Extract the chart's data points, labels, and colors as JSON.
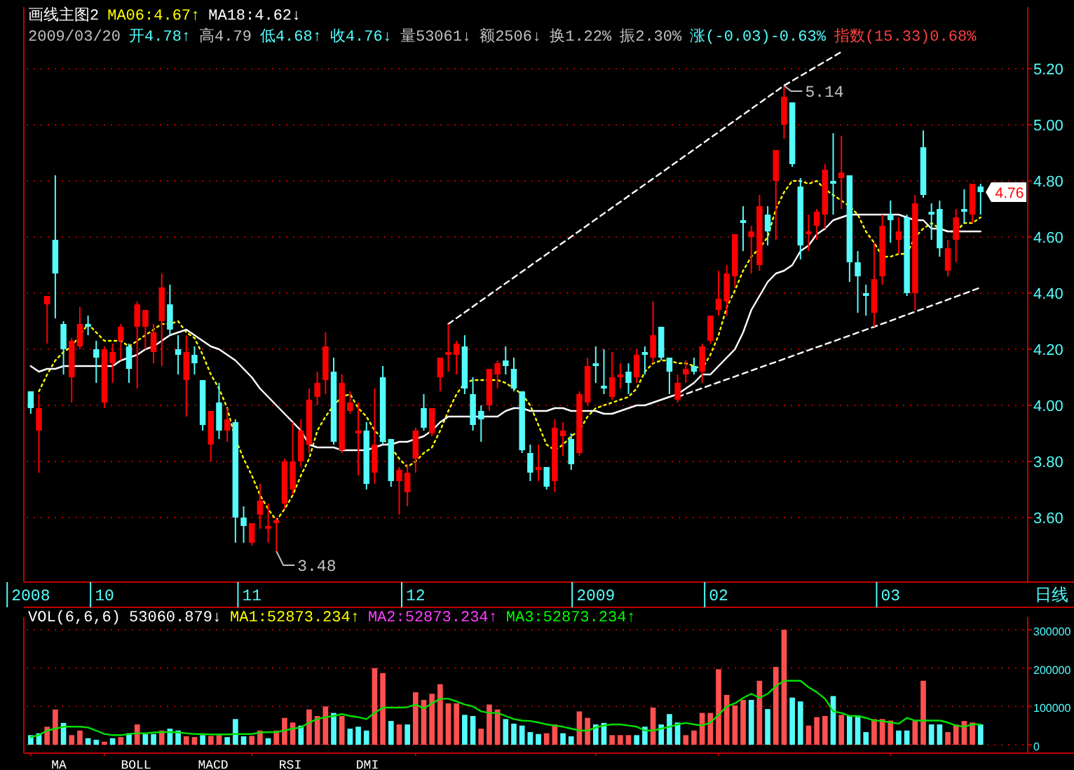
{
  "chart_data": [
    {
      "type": "candlestick",
      "categories": [
        "2008",
        null,
        null,
        null,
        null,
        null,
        null,
        null,
        null,
        "10",
        null,
        null,
        null,
        null,
        null,
        null,
        null,
        null,
        null,
        null,
        null,
        null,
        null,
        null,
        null,
        null,
        null,
        "11",
        null,
        null,
        null,
        null,
        null,
        null,
        null,
        null,
        null,
        null,
        null,
        null,
        null,
        null,
        null,
        null,
        null,
        null,
        null,
        "12",
        null,
        null,
        null,
        null,
        null,
        null,
        null,
        null,
        null,
        null,
        null,
        null,
        null,
        null,
        null,
        null,
        null,
        null,
        null,
        null,
        null,
        "2009",
        null,
        null,
        null,
        null,
        null,
        null,
        null,
        null,
        null,
        null,
        null,
        null,
        null,
        null,
        "02",
        null,
        null,
        null,
        null,
        null,
        null,
        null,
        null,
        null,
        null,
        null,
        null,
        null,
        null,
        null,
        null,
        null,
        null,
        null,
        null,
        "03",
        null,
        null,
        null,
        null,
        null,
        null,
        null,
        null,
        null,
        null,
        null
      ],
      "ohlc": [
        [
          4.05,
          4.05,
          3.97,
          3.99
        ],
        [
          3.91,
          4.04,
          3.76,
          3.99
        ],
        [
          4.36,
          4.39,
          4.22,
          4.39
        ],
        [
          4.59,
          4.82,
          4.31,
          4.47
        ],
        [
          4.29,
          4.3,
          4.11,
          4.2
        ],
        [
          4.1,
          4.24,
          4.01,
          4.23
        ],
        [
          4.21,
          4.35,
          4.2,
          4.29
        ],
        [
          4.29,
          4.32,
          4.25,
          4.28
        ],
        [
          4.2,
          4.23,
          4.08,
          4.17
        ],
        [
          4.01,
          4.21,
          3.99,
          4.2
        ],
        [
          4.15,
          4.22,
          4.08,
          4.19
        ],
        [
          4.23,
          4.29,
          4.16,
          4.28
        ],
        [
          4.21,
          4.22,
          4.08,
          4.13
        ],
        [
          4.28,
          4.37,
          4.06,
          4.36
        ],
        [
          4.28,
          4.34,
          4.2,
          4.34
        ],
        [
          4.19,
          4.29,
          4.15,
          4.26
        ],
        [
          4.3,
          4.47,
          4.14,
          4.42
        ],
        [
          4.36,
          4.43,
          4.25,
          4.27
        ],
        [
          4.2,
          4.25,
          4.11,
          4.18
        ],
        [
          4.09,
          4.25,
          3.96,
          4.19
        ],
        [
          4.18,
          4.21,
          4.11,
          4.15
        ],
        [
          4.09,
          4.09,
          3.91,
          3.93
        ],
        [
          3.86,
          3.98,
          3.8,
          3.98
        ],
        [
          4.01,
          4.08,
          3.88,
          3.91
        ],
        [
          3.91,
          3.99,
          3.87,
          3.95
        ],
        [
          3.94,
          3.95,
          3.51,
          3.6
        ],
        [
          3.6,
          3.64,
          3.51,
          3.57
        ],
        [
          3.51,
          3.58,
          3.5,
          3.58
        ],
        [
          3.61,
          3.72,
          3.56,
          3.66
        ],
        [
          3.56,
          3.65,
          3.51,
          3.57
        ],
        [
          3.58,
          3.6,
          3.48,
          3.59
        ],
        [
          3.65,
          3.81,
          3.63,
          3.8
        ],
        [
          3.7,
          3.94,
          3.68,
          3.8
        ],
        [
          3.8,
          3.95,
          3.78,
          3.91
        ],
        [
          3.86,
          4.06,
          3.83,
          4.02
        ],
        [
          4.03,
          4.12,
          4.0,
          4.08
        ],
        [
          4.09,
          4.26,
          4.04,
          4.21
        ],
        [
          4.12,
          4.17,
          3.86,
          3.87
        ],
        [
          3.84,
          4.11,
          3.83,
          4.08
        ],
        [
          3.98,
          4.05,
          3.97,
          4.01
        ],
        [
          3.9,
          4.01,
          3.75,
          3.91
        ],
        [
          3.91,
          3.94,
          3.7,
          3.72
        ],
        [
          3.76,
          4.06,
          3.72,
          3.86
        ],
        [
          4.1,
          4.14,
          3.86,
          3.87
        ],
        [
          3.88,
          3.88,
          3.71,
          3.73
        ],
        [
          3.73,
          3.78,
          3.61,
          3.77
        ],
        [
          3.69,
          3.79,
          3.64,
          3.76
        ],
        [
          3.81,
          3.92,
          3.76,
          3.91
        ],
        [
          3.99,
          4.04,
          3.91,
          3.92
        ],
        [
          3.9,
          3.99,
          3.89,
          3.99
        ],
        [
          4.1,
          4.17,
          4.05,
          4.17
        ],
        [
          4.18,
          4.29,
          4.12,
          4.19
        ],
        [
          4.18,
          4.23,
          4.11,
          4.22
        ],
        [
          4.21,
          4.25,
          4.04,
          4.06
        ],
        [
          4.04,
          4.1,
          3.91,
          3.93
        ],
        [
          3.98,
          4.0,
          3.87,
          3.95
        ],
        [
          4.0,
          4.13,
          3.98,
          4.13
        ],
        [
          4.11,
          4.16,
          4.06,
          4.15
        ],
        [
          4.16,
          4.21,
          4.11,
          4.14
        ],
        [
          4.13,
          4.17,
          4.05,
          4.06
        ],
        [
          4.05,
          4.05,
          3.83,
          3.84
        ],
        [
          3.83,
          3.86,
          3.73,
          3.76
        ],
        [
          3.77,
          3.86,
          3.73,
          3.78
        ],
        [
          3.78,
          3.78,
          3.7,
          3.71
        ],
        [
          3.73,
          3.95,
          3.69,
          3.92
        ],
        [
          3.89,
          3.94,
          3.82,
          3.91
        ],
        [
          3.88,
          3.9,
          3.77,
          3.79
        ],
        [
          3.83,
          4.05,
          3.82,
          4.04
        ],
        [
          4.01,
          4.17,
          4.0,
          4.14
        ],
        [
          4.15,
          4.21,
          4.08,
          4.14
        ],
        [
          4.07,
          4.2,
          4.04,
          4.06
        ],
        [
          4.03,
          4.19,
          4.02,
          4.1
        ],
        [
          4.1,
          4.15,
          4.06,
          4.11
        ],
        [
          4.12,
          4.15,
          4.04,
          4.08
        ],
        [
          4.1,
          4.2,
          4.08,
          4.18
        ],
        [
          4.19,
          4.21,
          4.11,
          4.18
        ],
        [
          4.17,
          4.37,
          4.15,
          4.25
        ],
        [
          4.28,
          4.28,
          4.16,
          4.17
        ],
        [
          4.17,
          4.17,
          4.04,
          4.12
        ],
        [
          4.02,
          4.11,
          4.01,
          4.08
        ],
        [
          4.11,
          4.16,
          4.08,
          4.13
        ],
        [
          4.14,
          4.17,
          4.11,
          4.12
        ],
        [
          4.12,
          4.22,
          4.08,
          4.21
        ],
        [
          4.23,
          4.32,
          4.22,
          4.32
        ],
        [
          4.34,
          4.48,
          4.32,
          4.38
        ],
        [
          4.37,
          4.5,
          4.32,
          4.47
        ],
        [
          4.46,
          4.61,
          4.42,
          4.61
        ],
        [
          4.66,
          4.71,
          4.55,
          4.65
        ],
        [
          4.6,
          4.64,
          4.47,
          4.62
        ],
        [
          4.5,
          4.75,
          4.48,
          4.71
        ],
        [
          4.68,
          4.71,
          4.57,
          4.62
        ],
        [
          4.8,
          4.91,
          4.59,
          4.91
        ],
        [
          5.0,
          5.14,
          4.95,
          5.1
        ],
        [
          5.08,
          5.08,
          4.85,
          4.86
        ],
        [
          4.78,
          4.81,
          4.52,
          4.57
        ],
        [
          4.61,
          4.68,
          4.55,
          4.62
        ],
        [
          4.64,
          4.7,
          4.59,
          4.69
        ],
        [
          4.68,
          4.86,
          4.63,
          4.84
        ],
        [
          4.8,
          4.97,
          4.68,
          4.79
        ],
        [
          4.81,
          4.96,
          4.7,
          4.83
        ],
        [
          4.82,
          4.82,
          4.44,
          4.51
        ],
        [
          4.51,
          4.55,
          4.33,
          4.46
        ],
        [
          4.4,
          4.43,
          4.32,
          4.39
        ],
        [
          4.33,
          4.58,
          4.28,
          4.45
        ],
        [
          4.46,
          4.68,
          4.43,
          4.64
        ],
        [
          4.68,
          4.73,
          4.58,
          4.66
        ],
        [
          4.59,
          4.67,
          4.54,
          4.62
        ],
        [
          4.67,
          4.68,
          4.39,
          4.4
        ],
        [
          4.4,
          4.75,
          4.34,
          4.72
        ],
        [
          4.92,
          4.98,
          4.74,
          4.75
        ],
        [
          4.69,
          4.72,
          4.59,
          4.68
        ],
        [
          4.7,
          4.73,
          4.53,
          4.56
        ],
        [
          4.48,
          4.59,
          4.46,
          4.56
        ],
        [
          4.59,
          4.7,
          4.51,
          4.67
        ],
        [
          4.7,
          4.77,
          4.65,
          4.69
        ],
        [
          4.68,
          4.79,
          4.65,
          4.79
        ],
        [
          4.78,
          4.79,
          4.68,
          4.76
        ]
      ],
      "colors": [
        "#54fcfc",
        "#ff0000",
        "#ff0000",
        "#54fcfc",
        "#54fcfc",
        "#ff0000",
        "#ff0000",
        "#54fcfc",
        "#54fcfc",
        "#ff0000",
        "#ff0000",
        "#ff0000",
        "#54fcfc",
        "#ff0000",
        "#ff0000",
        "#ff0000",
        "#ff0000",
        "#54fcfc",
        "#54fcfc",
        "#ff0000",
        "#54fcfc",
        "#54fcfc",
        "#ff0000",
        "#54fcfc",
        "#ff0000",
        "#54fcfc",
        "#54fcfc",
        "#ff0000",
        "#ff0000",
        "#ff0000",
        "#ff0000",
        "#ff0000",
        "#ff0000",
        "#ff0000",
        "#ff0000",
        "#ff0000",
        "#ff0000",
        "#54fcfc",
        "#ff0000",
        "#ff0000",
        "#ff0000",
        "#54fcfc",
        "#ff0000",
        "#54fcfc",
        "#54fcfc",
        "#ff0000",
        "#ff0000",
        "#ff0000",
        "#54fcfc",
        "#ff0000",
        "#ff0000",
        "#ff0000",
        "#ff0000",
        "#54fcfc",
        "#54fcfc",
        "#54fcfc",
        "#ff0000",
        "#ff0000",
        "#54fcfc",
        "#54fcfc",
        "#54fcfc",
        "#54fcfc",
        "#ff0000",
        "#54fcfc",
        "#ff0000",
        "#ff0000",
        "#54fcfc",
        "#ff0000",
        "#ff0000",
        "#54fcfc",
        "#54fcfc",
        "#ff0000",
        "#ff0000",
        "#54fcfc",
        "#ff0000",
        "#54fcfc",
        "#ff0000",
        "#54fcfc",
        "#54fcfc",
        "#ff0000",
        "#ff0000",
        "#54fcfc",
        "#ff0000",
        "#ff0000",
        "#ff0000",
        "#ff0000",
        "#ff0000",
        "#54fcfc",
        "#ff0000",
        "#ff0000",
        "#54fcfc",
        "#ff0000",
        "#ff0000",
        "#54fcfc",
        "#54fcfc",
        "#ff0000",
        "#ff0000",
        "#ff0000",
        "#54fcfc",
        "#ff0000",
        "#54fcfc",
        "#54fcfc",
        "#54fcfc",
        "#ff0000",
        "#ff0000",
        "#54fcfc",
        "#ff0000",
        "#54fcfc",
        "#ff0000",
        "#54fcfc",
        "#54fcfc",
        "#54fcfc",
        "#ff0000",
        "#ff0000",
        "#54fcfc",
        "#ff0000",
        "#54fcfc"
      ],
      "series": [
        {
          "type": "line",
          "color": "#ffff00",
          "line_style": "dotted",
          "values": [
            null,
            4.05,
            4.11,
            4.16,
            4.19,
            4.21,
            4.25,
            4.29,
            4.26,
            4.23,
            4.23,
            4.23,
            4.21,
            4.23,
            4.25,
            4.27,
            4.29,
            4.29,
            4.3,
            4.26,
            4.24,
            4.18,
            4.11,
            4.06,
            3.99,
            3.88,
            3.81,
            3.75,
            3.68,
            3.63,
            3.59,
            3.63,
            3.68,
            3.75,
            3.81,
            3.91,
            3.96,
            4.0,
            4.03,
            4.04,
            3.99,
            3.96,
            3.91,
            3.88,
            3.85,
            3.81,
            3.78,
            3.8,
            3.83,
            3.85,
            3.91,
            3.98,
            4.04,
            4.08,
            4.09,
            4.09,
            4.09,
            4.09,
            4.08,
            4.06,
            4.04,
            4.0,
            3.93,
            3.86,
            3.84,
            3.86,
            3.89,
            3.91,
            3.96,
            3.99,
            4.0,
            4.01,
            4.02,
            4.03,
            4.06,
            4.12,
            4.15,
            4.16,
            4.16,
            4.15,
            4.15,
            4.14,
            4.13,
            4.18,
            4.25,
            4.35,
            4.41,
            4.48,
            4.53,
            4.56,
            4.6,
            4.7,
            4.76,
            4.8,
            4.8,
            4.79,
            4.8,
            4.77,
            4.75,
            4.73,
            4.71,
            4.68,
            4.62,
            4.58,
            4.53,
            4.53,
            4.54,
            4.54,
            4.6,
            4.63,
            4.65,
            4.63,
            4.62,
            4.62,
            4.65,
            4.65,
            4.67
          ]
        },
        {
          "type": "line",
          "color": "#ffffff",
          "line_style": "solid",
          "values": [
            4.14,
            4.12,
            4.13,
            4.13,
            4.14,
            4.14,
            4.14,
            4.14,
            4.14,
            4.14,
            4.14,
            4.16,
            4.17,
            4.18,
            4.2,
            4.21,
            4.23,
            4.25,
            4.26,
            4.27,
            4.25,
            4.23,
            4.21,
            4.2,
            4.18,
            4.16,
            4.13,
            4.1,
            4.06,
            4.03,
            4.0,
            3.97,
            3.94,
            3.91,
            3.86,
            3.85,
            3.85,
            3.85,
            3.84,
            3.84,
            3.84,
            3.84,
            3.85,
            3.86,
            3.86,
            3.87,
            3.87,
            3.88,
            3.89,
            3.91,
            3.94,
            3.96,
            3.96,
            3.96,
            3.96,
            3.96,
            3.96,
            3.96,
            3.98,
            3.99,
            3.99,
            3.98,
            3.98,
            3.98,
            3.99,
            3.99,
            3.98,
            3.98,
            3.98,
            3.98,
            3.97,
            3.97,
            3.98,
            3.99,
            4.0,
            4.0,
            4.01,
            4.02,
            4.03,
            4.04,
            4.06,
            4.08,
            4.11,
            4.11,
            4.14,
            4.17,
            4.2,
            4.26,
            4.34,
            4.39,
            4.44,
            4.47,
            4.48,
            4.5,
            4.55,
            4.57,
            4.61,
            4.63,
            4.66,
            4.67,
            4.68,
            4.68,
            4.68,
            4.68,
            4.68,
            4.68,
            4.68,
            4.67,
            4.66,
            4.66,
            4.63,
            4.63,
            4.62,
            4.62,
            4.62,
            4.62,
            4.62
          ]
        },
        {
          "type": "line",
          "color": "#ffffff",
          "line_style": "dashed",
          "values": [
            null,
            null,
            null,
            null,
            null,
            null,
            null,
            null,
            null,
            null,
            null,
            null,
            null,
            null,
            null,
            null,
            null,
            null,
            null,
            null,
            null,
            null,
            null,
            null,
            null,
            null,
            null,
            null,
            null,
            null,
            null,
            null,
            null,
            null,
            null,
            null,
            null,
            null,
            null,
            null,
            null,
            null,
            null,
            null,
            null,
            null,
            null,
            null,
            null,
            null,
            null,
            4.29,
            null,
            null,
            null,
            null,
            null,
            null,
            null,
            null,
            null,
            null,
            null,
            null,
            null,
            null,
            null,
            null,
            null,
            null,
            null,
            null,
            null,
            null,
            null,
            null,
            null,
            null,
            null,
            null,
            null,
            null,
            null,
            null,
            null,
            null,
            null,
            null,
            null,
            null,
            null,
            null,
            5.14,
            null,
            null,
            null,
            null,
            null,
            null,
            5.26,
            null,
            null,
            null,
            null,
            null,
            null,
            null,
            null,
            null,
            null,
            null,
            null,
            null,
            null,
            null,
            null,
            null
          ]
        },
        {
          "type": "line",
          "color": "#ffffff",
          "line_style": "dashed",
          "values": [
            null,
            null,
            null,
            null,
            null,
            null,
            null,
            null,
            null,
            null,
            null,
            null,
            null,
            null,
            null,
            null,
            null,
            null,
            null,
            null,
            null,
            null,
            null,
            null,
            null,
            null,
            null,
            null,
            null,
            null,
            null,
            null,
            null,
            null,
            null,
            null,
            null,
            null,
            null,
            null,
            null,
            null,
            null,
            null,
            null,
            null,
            null,
            null,
            null,
            null,
            null,
            null,
            null,
            null,
            null,
            null,
            null,
            null,
            null,
            null,
            null,
            null,
            null,
            null,
            null,
            null,
            null,
            null,
            null,
            null,
            null,
            null,
            null,
            null,
            null,
            null,
            null,
            null,
            null,
            4.03,
            null,
            null,
            null,
            null,
            null,
            null,
            null,
            null,
            null,
            null,
            null,
            null,
            null,
            null,
            null,
            null,
            null,
            null,
            null,
            null,
            null,
            null,
            null,
            4.28,
            null,
            null,
            null,
            null,
            null,
            null,
            null,
            null,
            null,
            null,
            null,
            null,
            4.42
          ]
        }
      ],
      "ylim": [
        3.37,
        5.42
      ],
      "yticks": [
        {
          "value": 3.6,
          "label": "3.60"
        },
        {
          "value": 3.8,
          "label": "3.80"
        },
        {
          "value": 4.0,
          "label": "4.00"
        },
        {
          "value": 4.2,
          "label": "4.20"
        },
        {
          "value": 4.4,
          "label": "4.40"
        },
        {
          "value": 4.6,
          "label": "4.60"
        },
        {
          "value": 4.8,
          "label": "4.80"
        },
        {
          "value": 5.0,
          "label": "5.00"
        },
        {
          "value": 5.2,
          "label": "5.20"
        }
      ],
      "grid": "y",
      "annotations": [
        "画线主图2",
        "MA06:4.67↑",
        "MA18:4.62↓",
        "2009/03/20",
        "开4.78↑",
        "高4.79",
        "低4.68↑",
        "收4.76↓",
        "量53061↓",
        "额2506↓",
        "换1.22%",
        "振2.30%",
        "涨(-0.03)-0.63%",
        "指数(15.33)0.68%",
        "5.14",
        "3.48",
        "4.76",
        "日线"
      ]
    },
    {
      "type": "bar",
      "categories": [
        "2008",
        null,
        null,
        null,
        null,
        null,
        null,
        null,
        null,
        "10",
        null,
        null,
        null,
        null,
        null,
        null,
        null,
        null,
        null,
        null,
        null,
        null,
        null,
        null,
        null,
        null,
        null,
        "11",
        null,
        null,
        null,
        null,
        null,
        null,
        null,
        null,
        null,
        null,
        null,
        null,
        null,
        null,
        null,
        null,
        null,
        null,
        null,
        "12",
        null,
        null,
        null,
        null,
        null,
        null,
        null,
        null,
        null,
        null,
        null,
        null,
        null,
        null,
        null,
        null,
        null,
        null,
        null,
        null,
        null,
        "2009",
        null,
        null,
        null,
        null,
        null,
        null,
        null,
        null,
        null,
        null,
        null,
        null,
        null,
        null,
        "02",
        null,
        null,
        null,
        null,
        null,
        null,
        null,
        null,
        null,
        null,
        null,
        null,
        null,
        null,
        null,
        null,
        null,
        null,
        null,
        null,
        "03",
        null,
        null,
        null,
        null,
        null,
        null,
        null,
        null,
        null,
        null,
        null
      ],
      "tick_labels": "y",
      "series": [
        {
          "type": "bar",
          "values": [
            25000,
            30000,
            47000,
            92000,
            57000,
            25000,
            37000,
            17000,
            13000,
            8000,
            17000,
            20000,
            30000,
            53000,
            28000,
            28000,
            37000,
            42000,
            37000,
            22000,
            20000,
            25000,
            23000,
            25000,
            20000,
            67000,
            22000,
            23000,
            37000,
            17000,
            37000,
            70000,
            58000,
            50000,
            92000,
            75000,
            100000,
            83000,
            75000,
            42000,
            47000,
            37000,
            200000,
            187000,
            62000,
            53000,
            53000,
            137000,
            117000,
            133000,
            158000,
            108000,
            108000,
            78000,
            75000,
            42000,
            105000,
            92000,
            67000,
            55000,
            50000,
            33000,
            28000,
            30000,
            53000,
            30000,
            22000,
            87000,
            70000,
            53000,
            57000,
            25000,
            25000,
            25000,
            25000,
            47000,
            97000,
            53000,
            80000,
            58000,
            25000,
            37000,
            83000,
            83000,
            197000,
            130000,
            103000,
            117000,
            117000,
            167000,
            93000,
            203000,
            300000,
            123000,
            113000,
            50000,
            72000,
            75000,
            127000,
            78000,
            77000,
            77000,
            33000,
            67000,
            67000,
            63000,
            37000,
            37000,
            62000,
            167000,
            53000,
            53000,
            33000,
            53000,
            62000,
            58000,
            53000
          ],
          "colors": [
            "#54fcfc",
            "#54fcfc",
            "#ff5050",
            "#ff5050",
            "#54fcfc",
            "#ff5050",
            "#ff5050",
            "#54fcfc",
            "#54fcfc",
            "#ff5050",
            "#54fcfc",
            "#ff5050",
            "#54fcfc",
            "#ff5050",
            "#54fcfc",
            "#54fcfc",
            "#ff5050",
            "#54fcfc",
            "#54fcfc",
            "#ff5050",
            "#ff5050",
            "#54fcfc",
            "#ff5050",
            "#ff5050",
            "#54fcfc",
            "#54fcfc",
            "#54fcfc",
            "#ff5050",
            "#ff5050",
            "#54fcfc",
            "#ff5050",
            "#ff5050",
            "#ff5050",
            "#54fcfc",
            "#ff5050",
            "#ff5050",
            "#ff5050",
            "#54fcfc",
            "#ff5050",
            "#54fcfc",
            "#54fcfc",
            "#54fcfc",
            "#ff5050",
            "#ff5050",
            "#54fcfc",
            "#ff5050",
            "#54fcfc",
            "#ff5050",
            "#ff5050",
            "#ff5050",
            "#ff5050",
            "#ff5050",
            "#ff5050",
            "#54fcfc",
            "#54fcfc",
            "#ff5050",
            "#ff5050",
            "#ff5050",
            "#54fcfc",
            "#54fcfc",
            "#54fcfc",
            "#54fcfc",
            "#54fcfc",
            "#ff5050",
            "#ff5050",
            "#54fcfc",
            "#54fcfc",
            "#ff5050",
            "#ff5050",
            "#54fcfc",
            "#54fcfc",
            "#ff5050",
            "#ff5050",
            "#ff5050",
            "#54fcfc",
            "#54fcfc",
            "#ff5050",
            "#54fcfc",
            "#54fcfc",
            "#54fcfc",
            "#ff5050",
            "#ff5050",
            "#ff5050",
            "#ff5050",
            "#ff5050",
            "#ff5050",
            "#ff5050",
            "#ff5050",
            "#54fcfc",
            "#ff5050",
            "#54fcfc",
            "#ff5050",
            "#ff5050",
            "#54fcfc",
            "#54fcfc",
            "#ff5050",
            "#ff5050",
            "#ff5050",
            "#54fcfc",
            "#ff5050",
            "#54fcfc",
            "#54fcfc",
            "#54fcfc",
            "#ff5050",
            "#ff5050",
            "#ff5050",
            "#54fcfc",
            "#54fcfc",
            "#ff5050",
            "#ff5050",
            "#54fcfc",
            "#54fcfc",
            "#ff5050",
            "#ff5050",
            "#ff5050",
            "#ff5050",
            "#54fcfc"
          ]
        },
        {
          "type": "line",
          "color": "#00e000",
          "line_style": "solid",
          "values": [
            20000,
            25000,
            37000,
            42000,
            47000,
            47000,
            47000,
            45000,
            37000,
            28000,
            25000,
            25000,
            28000,
            30000,
            30000,
            32000,
            33000,
            33000,
            32000,
            30000,
            28000,
            28000,
            27000,
            27000,
            27000,
            28000,
            28000,
            28000,
            32000,
            33000,
            33000,
            37000,
            42000,
            45000,
            58000,
            67000,
            72000,
            75000,
            80000,
            75000,
            72000,
            67000,
            83000,
            97000,
            97000,
            97000,
            98000,
            105000,
            95000,
            108000,
            120000,
            120000,
            113000,
            105000,
            100000,
            87000,
            83000,
            83000,
            75000,
            67000,
            63000,
            62000,
            58000,
            53000,
            50000,
            47000,
            42000,
            37000,
            37000,
            45000,
            50000,
            53000,
            53000,
            50000,
            47000,
            37000,
            37000,
            42000,
            47000,
            53000,
            57000,
            53000,
            50000,
            58000,
            78000,
            100000,
            108000,
            122000,
            133000,
            122000,
            133000,
            153000,
            167000,
            167000,
            167000,
            150000,
            137000,
            120000,
            87000,
            83000,
            75000,
            75000,
            70000,
            63000,
            62000,
            58000,
            55000,
            70000,
            63000,
            63000,
            63000,
            63000,
            58000,
            50000,
            47000,
            53000,
            53000
          ]
        }
      ],
      "ylim": [
        -22000,
        333000
      ],
      "yticks": [
        0,
        100000,
        200000,
        300000
      ],
      "grid": "y",
      "annotations": [
        "VOL(6,6,6)",
        "53060.879↓",
        "MA1:52873.234↑",
        "MA2:52873.234↑",
        "MA3:52873.234↑",
        "MA",
        "BOLL",
        "MACD",
        "RSI",
        "DMI"
      ]
    }
  ]
}
